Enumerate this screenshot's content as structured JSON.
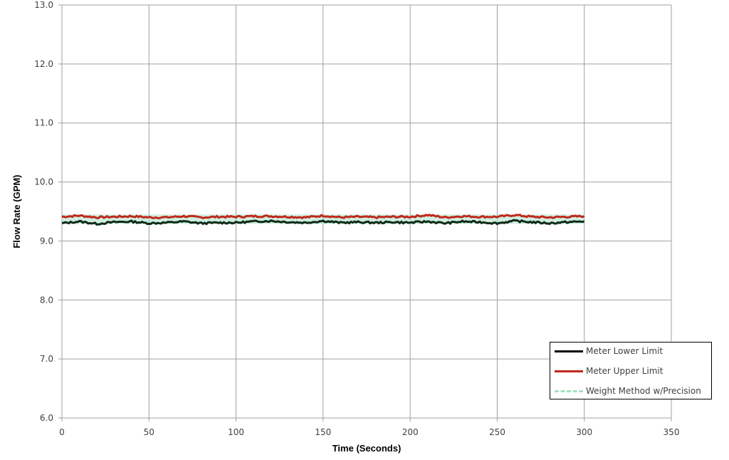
{
  "chart_data": {
    "type": "line",
    "title": "",
    "xlabel": "Time  (Seconds)",
    "ylabel": "Flow Rate (GPM)",
    "xlim": [
      0,
      350
    ],
    "ylim": [
      6.0,
      13.0
    ],
    "x_ticks": [
      "0",
      "50",
      "100",
      "150",
      "200",
      "250",
      "300",
      "350"
    ],
    "y_ticks": [
      "6.0",
      "7.0",
      "8.0",
      "9.0",
      "10.0",
      "11.0",
      "12.0",
      "13.0"
    ],
    "grid": true,
    "legend_position": "lower right",
    "x": [
      0,
      10,
      20,
      30,
      40,
      50,
      60,
      70,
      80,
      90,
      100,
      110,
      120,
      130,
      140,
      150,
      160,
      170,
      180,
      190,
      200,
      210,
      220,
      230,
      240,
      250,
      260,
      270,
      280,
      290,
      300
    ],
    "series": [
      {
        "name": "Meter Lower Limit",
        "color": "#000000",
        "style": "solid",
        "values": [
          9.3,
          9.33,
          9.29,
          9.32,
          9.33,
          9.3,
          9.31,
          9.33,
          9.3,
          9.31,
          9.31,
          9.33,
          9.34,
          9.32,
          9.31,
          9.34,
          9.31,
          9.32,
          9.31,
          9.32,
          9.31,
          9.33,
          9.3,
          9.33,
          9.32,
          9.3,
          9.34,
          9.32,
          9.3,
          9.32,
          9.33
        ]
      },
      {
        "name": "Meter Upper Limit",
        "color": "#c0281c",
        "style": "solid",
        "values": [
          9.41,
          9.43,
          9.4,
          9.41,
          9.42,
          9.4,
          9.4,
          9.42,
          9.4,
          9.41,
          9.41,
          9.42,
          9.42,
          9.41,
          9.4,
          9.43,
          9.4,
          9.41,
          9.4,
          9.41,
          9.41,
          9.44,
          9.4,
          9.42,
          9.41,
          9.41,
          9.44,
          9.41,
          9.4,
          9.41,
          9.42
        ]
      },
      {
        "name": "Weight Method w/Precision",
        "color": "#a8e0c4",
        "style": "dashed",
        "values": [
          9.37,
          9.37,
          9.37,
          9.37,
          9.37,
          9.37,
          9.37,
          9.37,
          9.37,
          9.37,
          9.37,
          9.37,
          9.37,
          9.37,
          9.37,
          9.37,
          9.37,
          9.37,
          9.37,
          9.37,
          9.37,
          9.37,
          9.37,
          9.37,
          9.37,
          9.37,
          9.37,
          9.37,
          9.37,
          9.37,
          9.37
        ]
      }
    ]
  },
  "legend": {
    "items": [
      {
        "label": "Meter Lower Limit"
      },
      {
        "label": "Meter Upper Limit"
      },
      {
        "label": "Weight Method w/Precision"
      }
    ]
  },
  "axes": {
    "xlabel": "Time  (Seconds)",
    "ylabel": "Flow Rate (GPM)"
  },
  "colors": {
    "gridline": "#a0a0a0",
    "lower": "#000000",
    "upper": "#c0281c",
    "weight": "#a8e0c4"
  }
}
